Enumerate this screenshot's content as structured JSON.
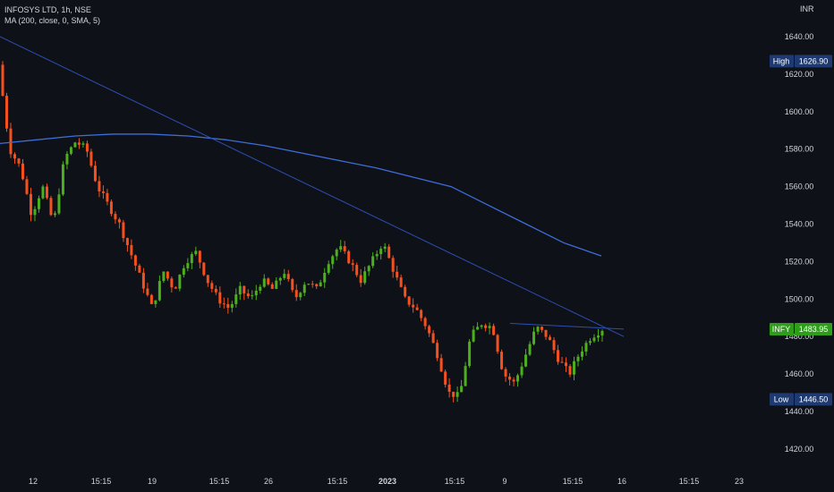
{
  "header": {
    "symbol_line": "INFOSYS LTD, 1h, NSE",
    "indicator_line": "MA (200, close, 0, SMA, 5)",
    "currency": "INR"
  },
  "chart_data": {
    "type": "candlestick",
    "symbol": "INFY",
    "interval": "1h",
    "exchange": "NSE",
    "y_ticks": [
      1420,
      1440,
      1460,
      1480,
      1500,
      1520,
      1540,
      1560,
      1580,
      1600,
      1620,
      1640
    ],
    "ylim": [
      1409,
      1650
    ],
    "x_labels": [
      "12",
      "15:15",
      "19",
      "15:15",
      "26",
      "15:15",
      "2023",
      "15:15",
      "9",
      "15:15",
      "16",
      "15:15",
      "23"
    ],
    "price_tags": {
      "high": {
        "label": "High",
        "value": "1626.90"
      },
      "last": {
        "label": "INFY",
        "value": "1483.95"
      },
      "low": {
        "label": "Low",
        "value": "1446.50"
      }
    },
    "close_path": [
      1625,
      1580,
      1570,
      1545,
      1560,
      1540,
      1575,
      1584,
      1580,
      1560,
      1550,
      1540,
      1525,
      1510,
      1495,
      1515,
      1505,
      1520,
      1525,
      1510,
      1500,
      1495,
      1505,
      1500,
      1510,
      1505,
      1515,
      1500,
      1510,
      1505,
      1520,
      1528,
      1520,
      1510,
      1520,
      1530,
      1515,
      1500,
      1495,
      1485,
      1470,
      1450,
      1448,
      1480,
      1487,
      1485,
      1460,
      1455,
      1470,
      1485,
      1480,
      1468,
      1460,
      1472,
      1480,
      1484
    ],
    "series": [
      {
        "name": "MA (200, close, 0, SMA, 5)",
        "color": "#3c6ed8",
        "values": [
          1583,
          1585,
          1587,
          1588,
          1588,
          1587,
          1585,
          1582,
          1578,
          1574,
          1570,
          1565,
          1560,
          1550,
          1540,
          1530,
          1523
        ]
      },
      {
        "name": "Trend line",
        "color": "#2c4fb0",
        "points": [
          [
            0,
            1640
          ],
          [
            1,
            1480
          ]
        ]
      }
    ],
    "colors": {
      "up": "#26a69a",
      "up_bright": "#4caf1e",
      "down": "#f4511e",
      "text": "#d1d4dc",
      "tag_blue": "#1e3a70",
      "tag_green": "#2e9e1a"
    }
  }
}
